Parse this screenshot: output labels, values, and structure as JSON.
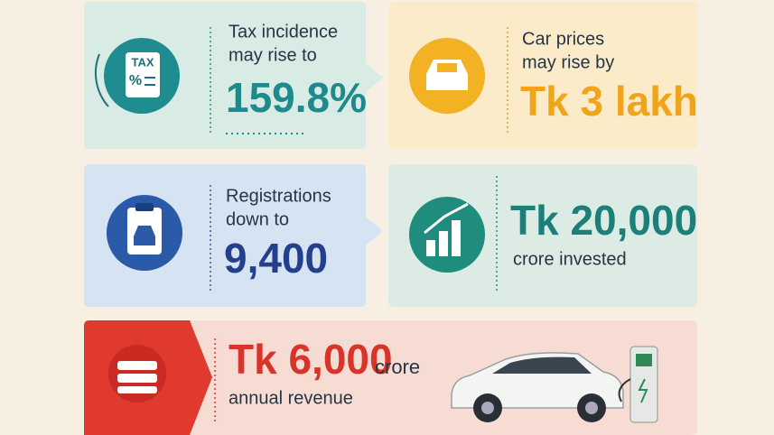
{
  "cards": [
    {
      "label_lines": [
        "Tax incidence",
        "may rise to"
      ],
      "value": "159.8%",
      "icon_text": [
        "TAX",
        "%"
      ]
    },
    {
      "label_lines": [
        "Car prices",
        "may rise by"
      ],
      "value": "Tk 3 lakh"
    },
    {
      "label_lines": [
        "Registrations",
        "down to"
      ],
      "value": "9,400"
    },
    {
      "value": "Tk 20,000",
      "label_lines": [
        "crore invested"
      ]
    },
    {
      "value": "Tk 6,000",
      "value_suffix": "crore",
      "label_lines": [
        "annual revenue"
      ]
    }
  ]
}
